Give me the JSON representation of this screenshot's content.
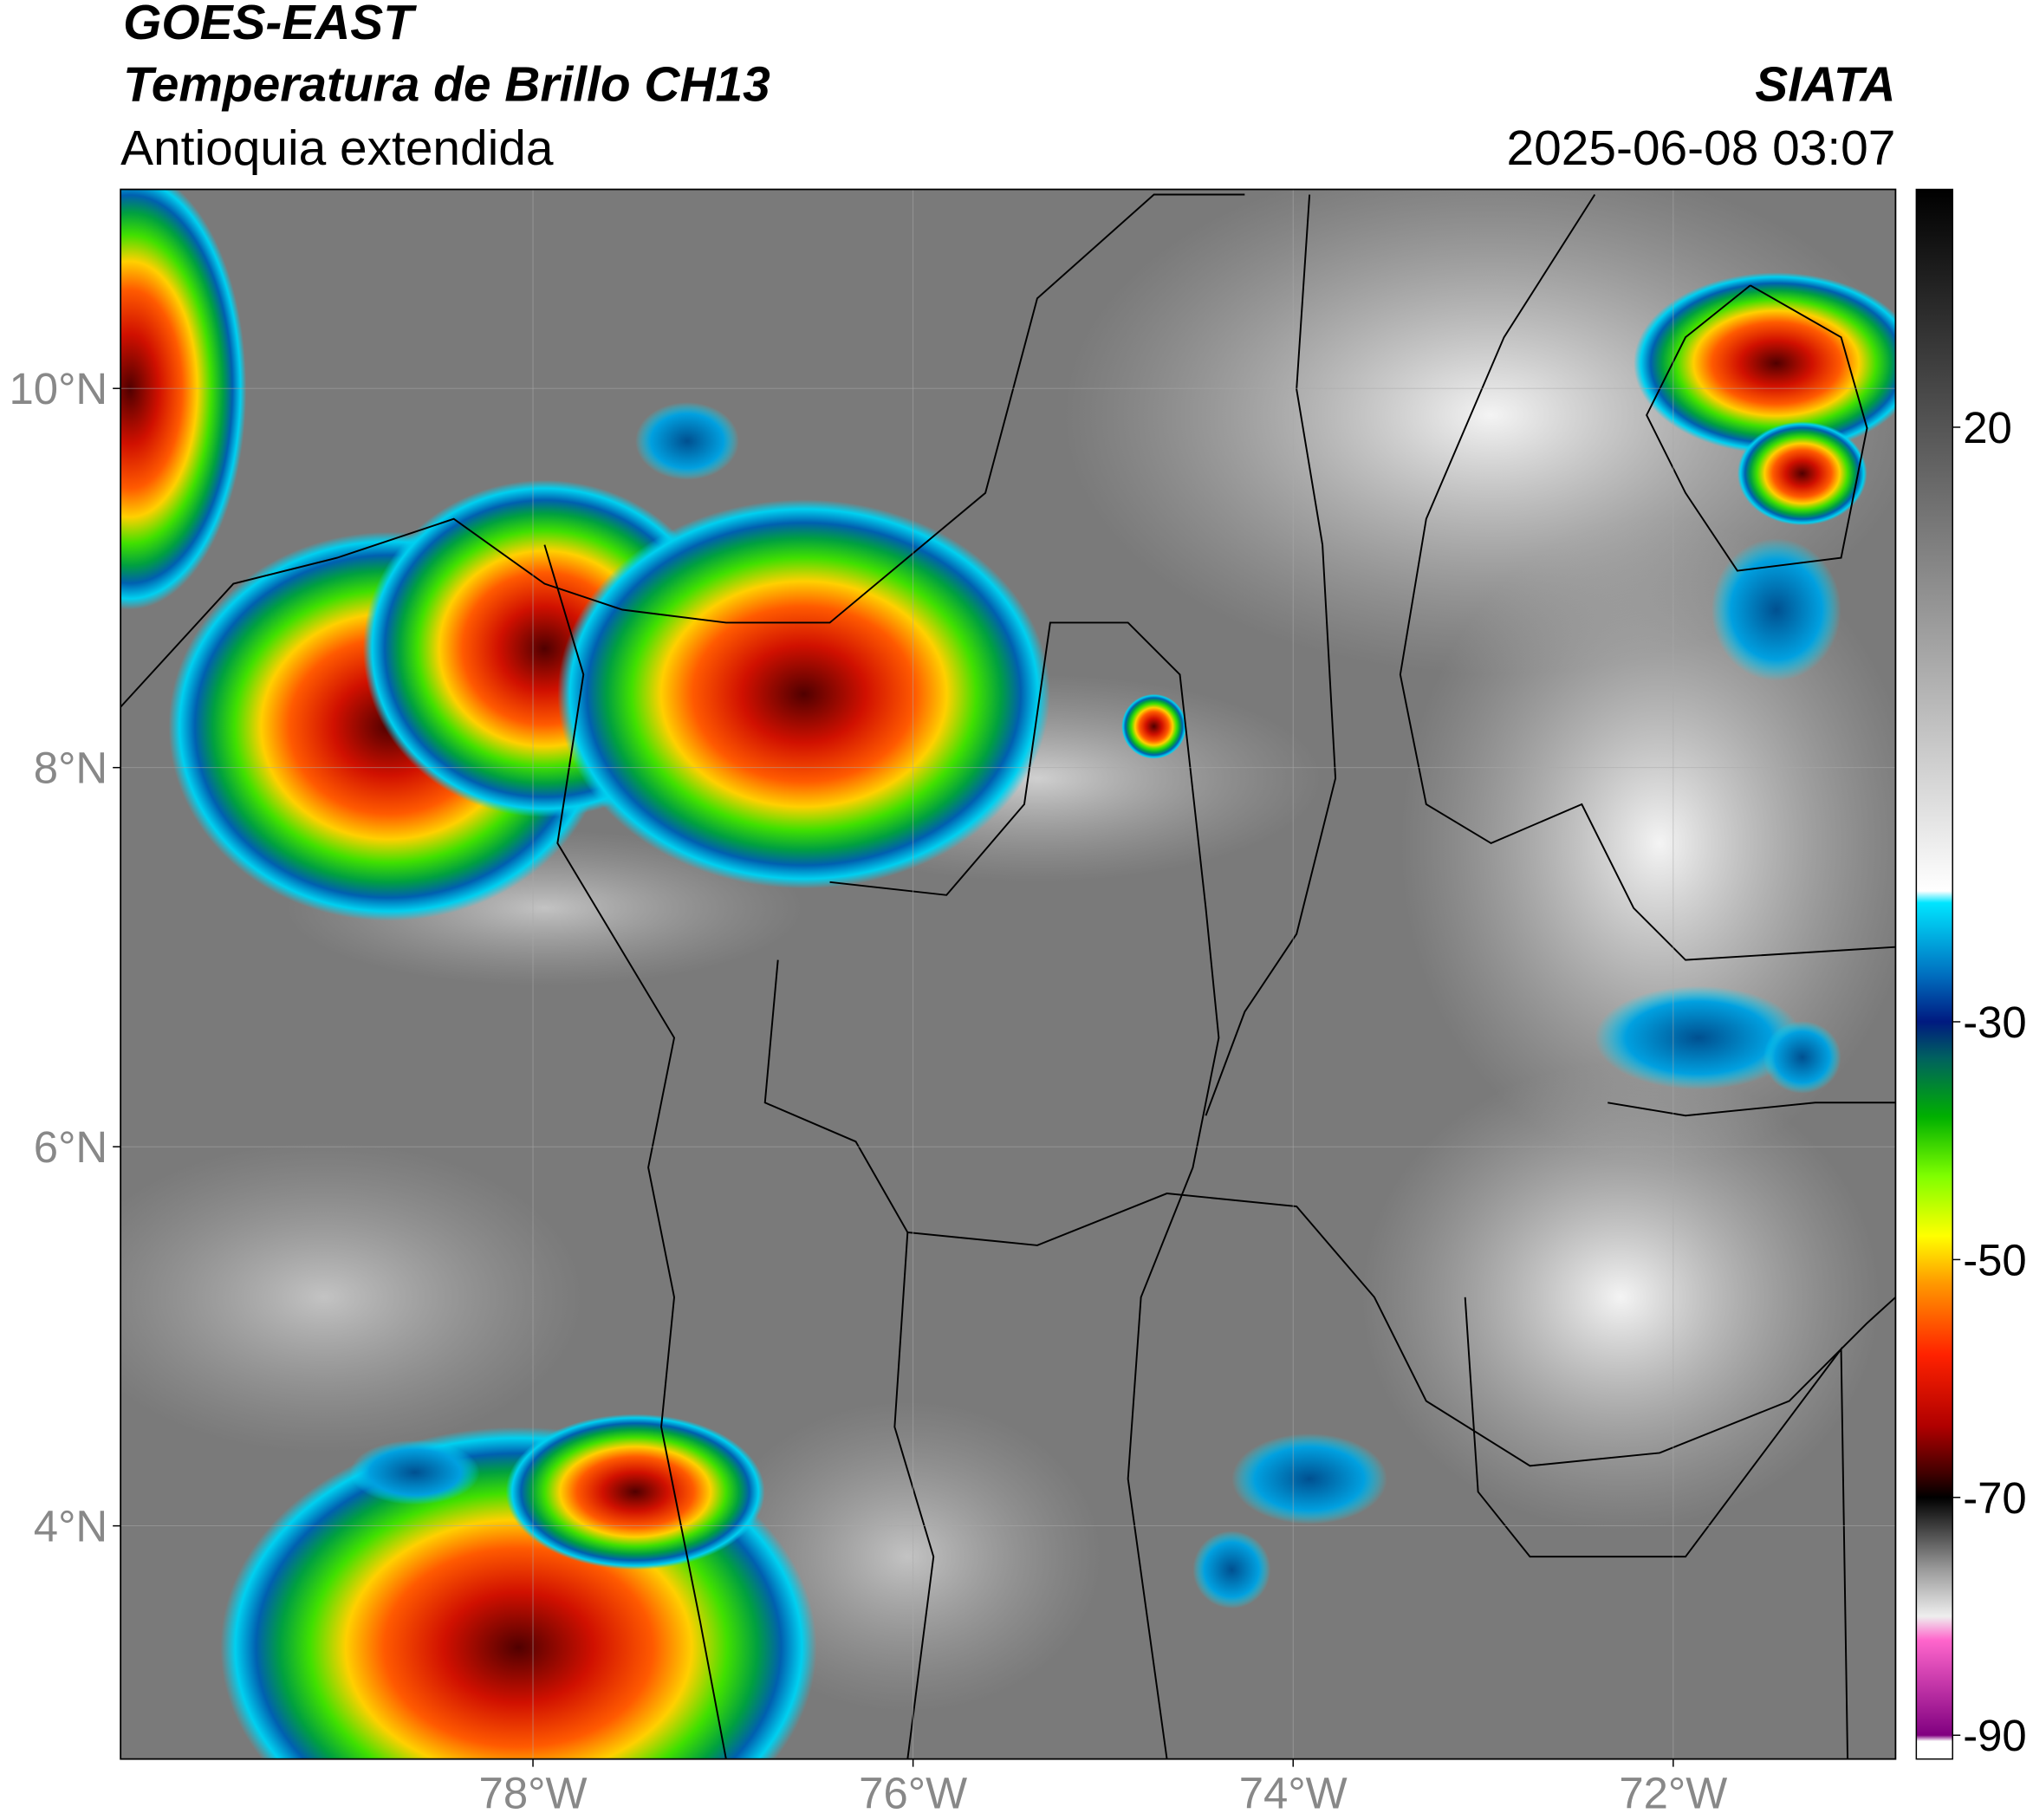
{
  "header": {
    "title": "GOES-EAST",
    "subtitle": "Temperatura de Brillo CH13",
    "region": "Antioquia extendida",
    "source": "SIATA",
    "datetime": "2025-06-08 03:07"
  },
  "chart_data": {
    "type": "map",
    "xlim": [
      -80.17,
      -70.83
    ],
    "ylim": [
      2.77,
      11.05
    ],
    "xticks": [
      {
        "value": -78,
        "label": "78°W"
      },
      {
        "value": -76,
        "label": "76°W"
      },
      {
        "value": -74,
        "label": "74°W"
      },
      {
        "value": -72,
        "label": "72°W"
      }
    ],
    "yticks": [
      {
        "value": 10,
        "label": "10°N"
      },
      {
        "value": 8,
        "label": "8°N"
      },
      {
        "value": 6,
        "label": "6°N"
      },
      {
        "value": 4,
        "label": "4°N"
      }
    ],
    "grid": true,
    "clim": [
      -92,
      40
    ],
    "cticks": [
      20,
      -30,
      -50,
      -70,
      -90
    ],
    "colormap": [
      {
        "value": 40,
        "color": "#000000"
      },
      {
        "value": 20,
        "color": "#555555"
      },
      {
        "value": 0,
        "color": "#aaaaaa"
      },
      {
        "value": -19,
        "color": "#ffffff"
      },
      {
        "value": -20,
        "color": "#00e5ff"
      },
      {
        "value": -26,
        "color": "#0070c0"
      },
      {
        "value": -30,
        "color": "#001a80"
      },
      {
        "value": -33,
        "color": "#006060"
      },
      {
        "value": -38,
        "color": "#00b000"
      },
      {
        "value": -43,
        "color": "#80ff00"
      },
      {
        "value": -48,
        "color": "#ffff00"
      },
      {
        "value": -52,
        "color": "#ff9900"
      },
      {
        "value": -58,
        "color": "#ff2200"
      },
      {
        "value": -64,
        "color": "#b00000"
      },
      {
        "value": -68,
        "color": "#400000"
      },
      {
        "value": -70,
        "color": "#000000"
      },
      {
        "value": -76,
        "color": "#999999"
      },
      {
        "value": -80,
        "color": "#eeeeee"
      },
      {
        "value": -82,
        "color": "#ff66cc"
      },
      {
        "value": -90,
        "color": "#800080"
      },
      {
        "value": -90.5,
        "color": "#ffffff"
      }
    ]
  }
}
